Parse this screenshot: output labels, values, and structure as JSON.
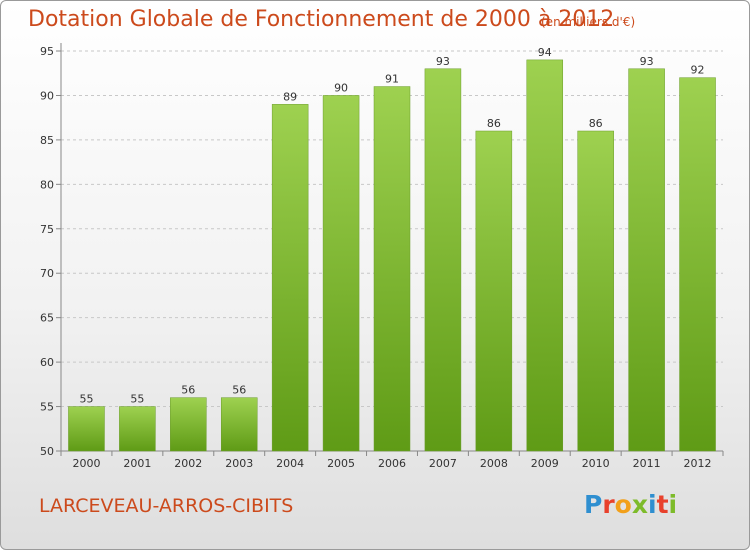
{
  "header": {
    "title": "Dotation Globale de Fonctionnement de 2000 à 2012",
    "unit": "(en milliers d'€)"
  },
  "footer": {
    "commune": "LARCEVEAU-ARROS-CIBITS",
    "logo_letters": [
      "P",
      "r",
      "o",
      "x",
      "i",
      "t",
      "i"
    ],
    "logo_colors": [
      "#2f8fd0",
      "#e8412c",
      "#f2a01a",
      "#7dbb2a",
      "#2f8fd0",
      "#e8412c",
      "#7dbb2a"
    ]
  },
  "colors": {
    "bar_light": "#9ed150",
    "bar_dark": "#5f9b16",
    "text": "#cc4a1c"
  },
  "chart_data": {
    "type": "bar",
    "title": "Dotation Globale de Fonctionnement de 2000 à 2012",
    "subtitle": "(en milliers d'€)",
    "categories": [
      "2000",
      "2001",
      "2002",
      "2003",
      "2004",
      "2005",
      "2006",
      "2007",
      "2008",
      "2009",
      "2010",
      "2011",
      "2012"
    ],
    "values": [
      55,
      55,
      56,
      56,
      89,
      90,
      91,
      93,
      86,
      94,
      86,
      93,
      92
    ],
    "ylim": [
      50,
      95
    ],
    "yticks": [
      50,
      55,
      60,
      65,
      70,
      75,
      80,
      85,
      90,
      95
    ],
    "grid": true,
    "xlabel": "",
    "ylabel": ""
  }
}
